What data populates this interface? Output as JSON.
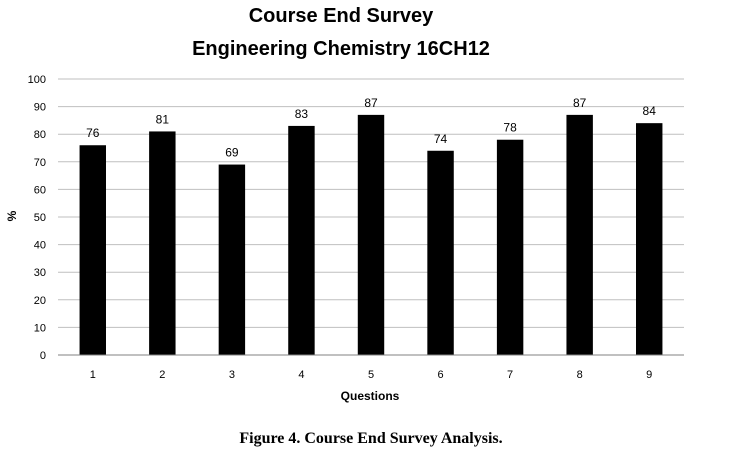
{
  "chart_data": {
    "type": "bar",
    "title": "Course End Survey",
    "subtitle": "Engineering Chemistry 16CH12",
    "xlabel": "Questions",
    "ylabel": "%",
    "categories": [
      "1",
      "2",
      "3",
      "4",
      "5",
      "6",
      "7",
      "8",
      "9"
    ],
    "values": [
      76,
      81,
      69,
      83,
      87,
      74,
      78,
      87,
      84
    ],
    "ylim": [
      0,
      100
    ],
    "yticks": [
      0,
      10,
      20,
      30,
      40,
      50,
      60,
      70,
      80,
      90,
      100
    ],
    "grid": true,
    "legend": "none",
    "bar_color": "#000000",
    "grid_color": "#bfbfbf"
  },
  "caption": "Figure 4. Course End Survey Analysis."
}
